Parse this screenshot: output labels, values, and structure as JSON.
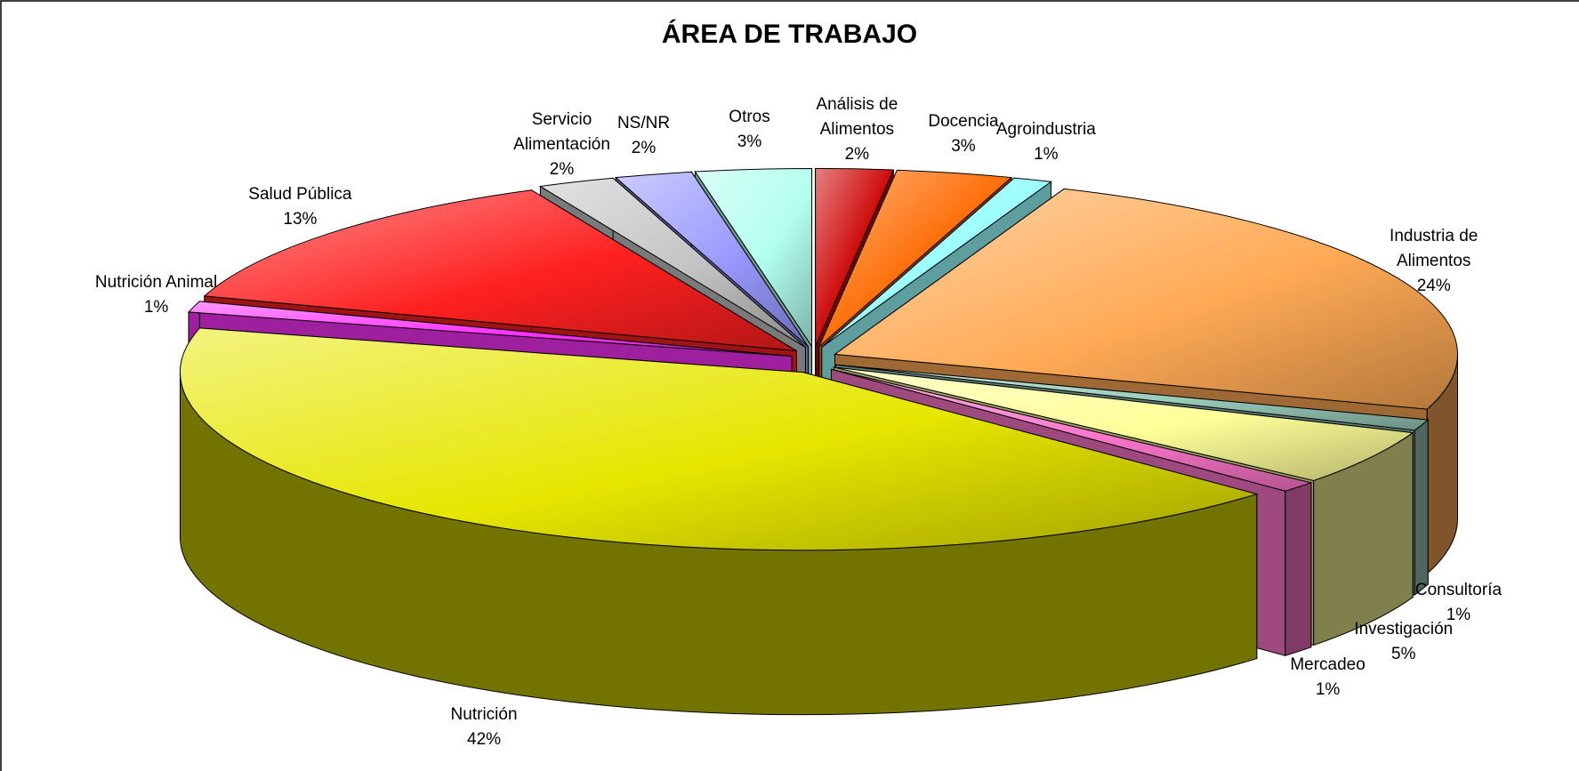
{
  "chart_data": {
    "type": "pie3d",
    "title": "ÁREA DE TRABAJO",
    "categories": [
      "Análisis de Alimentos",
      "Docencia",
      "Agroindustria",
      "Industria de Alimentos",
      "Consultoría",
      "Investigación",
      "Mercadeo",
      "Nutrición",
      "Nutrición Animal",
      "Salud Pública",
      "Servicio Alimentación",
      "NS/NR",
      "Otros"
    ],
    "values": [
      2,
      3,
      1,
      24,
      1,
      5,
      1,
      42,
      1,
      13,
      2,
      2,
      3
    ],
    "value_labels": [
      "2%",
      "3%",
      "1%",
      "24%",
      "1%",
      "5%",
      "1%",
      "42%",
      "1%",
      "13%",
      "2%",
      "2%",
      "3%"
    ],
    "colors": [
      "#cc0000",
      "#ff6a00",
      "#99ffff",
      "#ffaa55",
      "#99ccbb",
      "#ffff99",
      "#ff77cc",
      "#e6e600",
      "#ff33ff",
      "#ff2020",
      "#c4c4c4",
      "#9999ff",
      "#b3ffee"
    ]
  }
}
